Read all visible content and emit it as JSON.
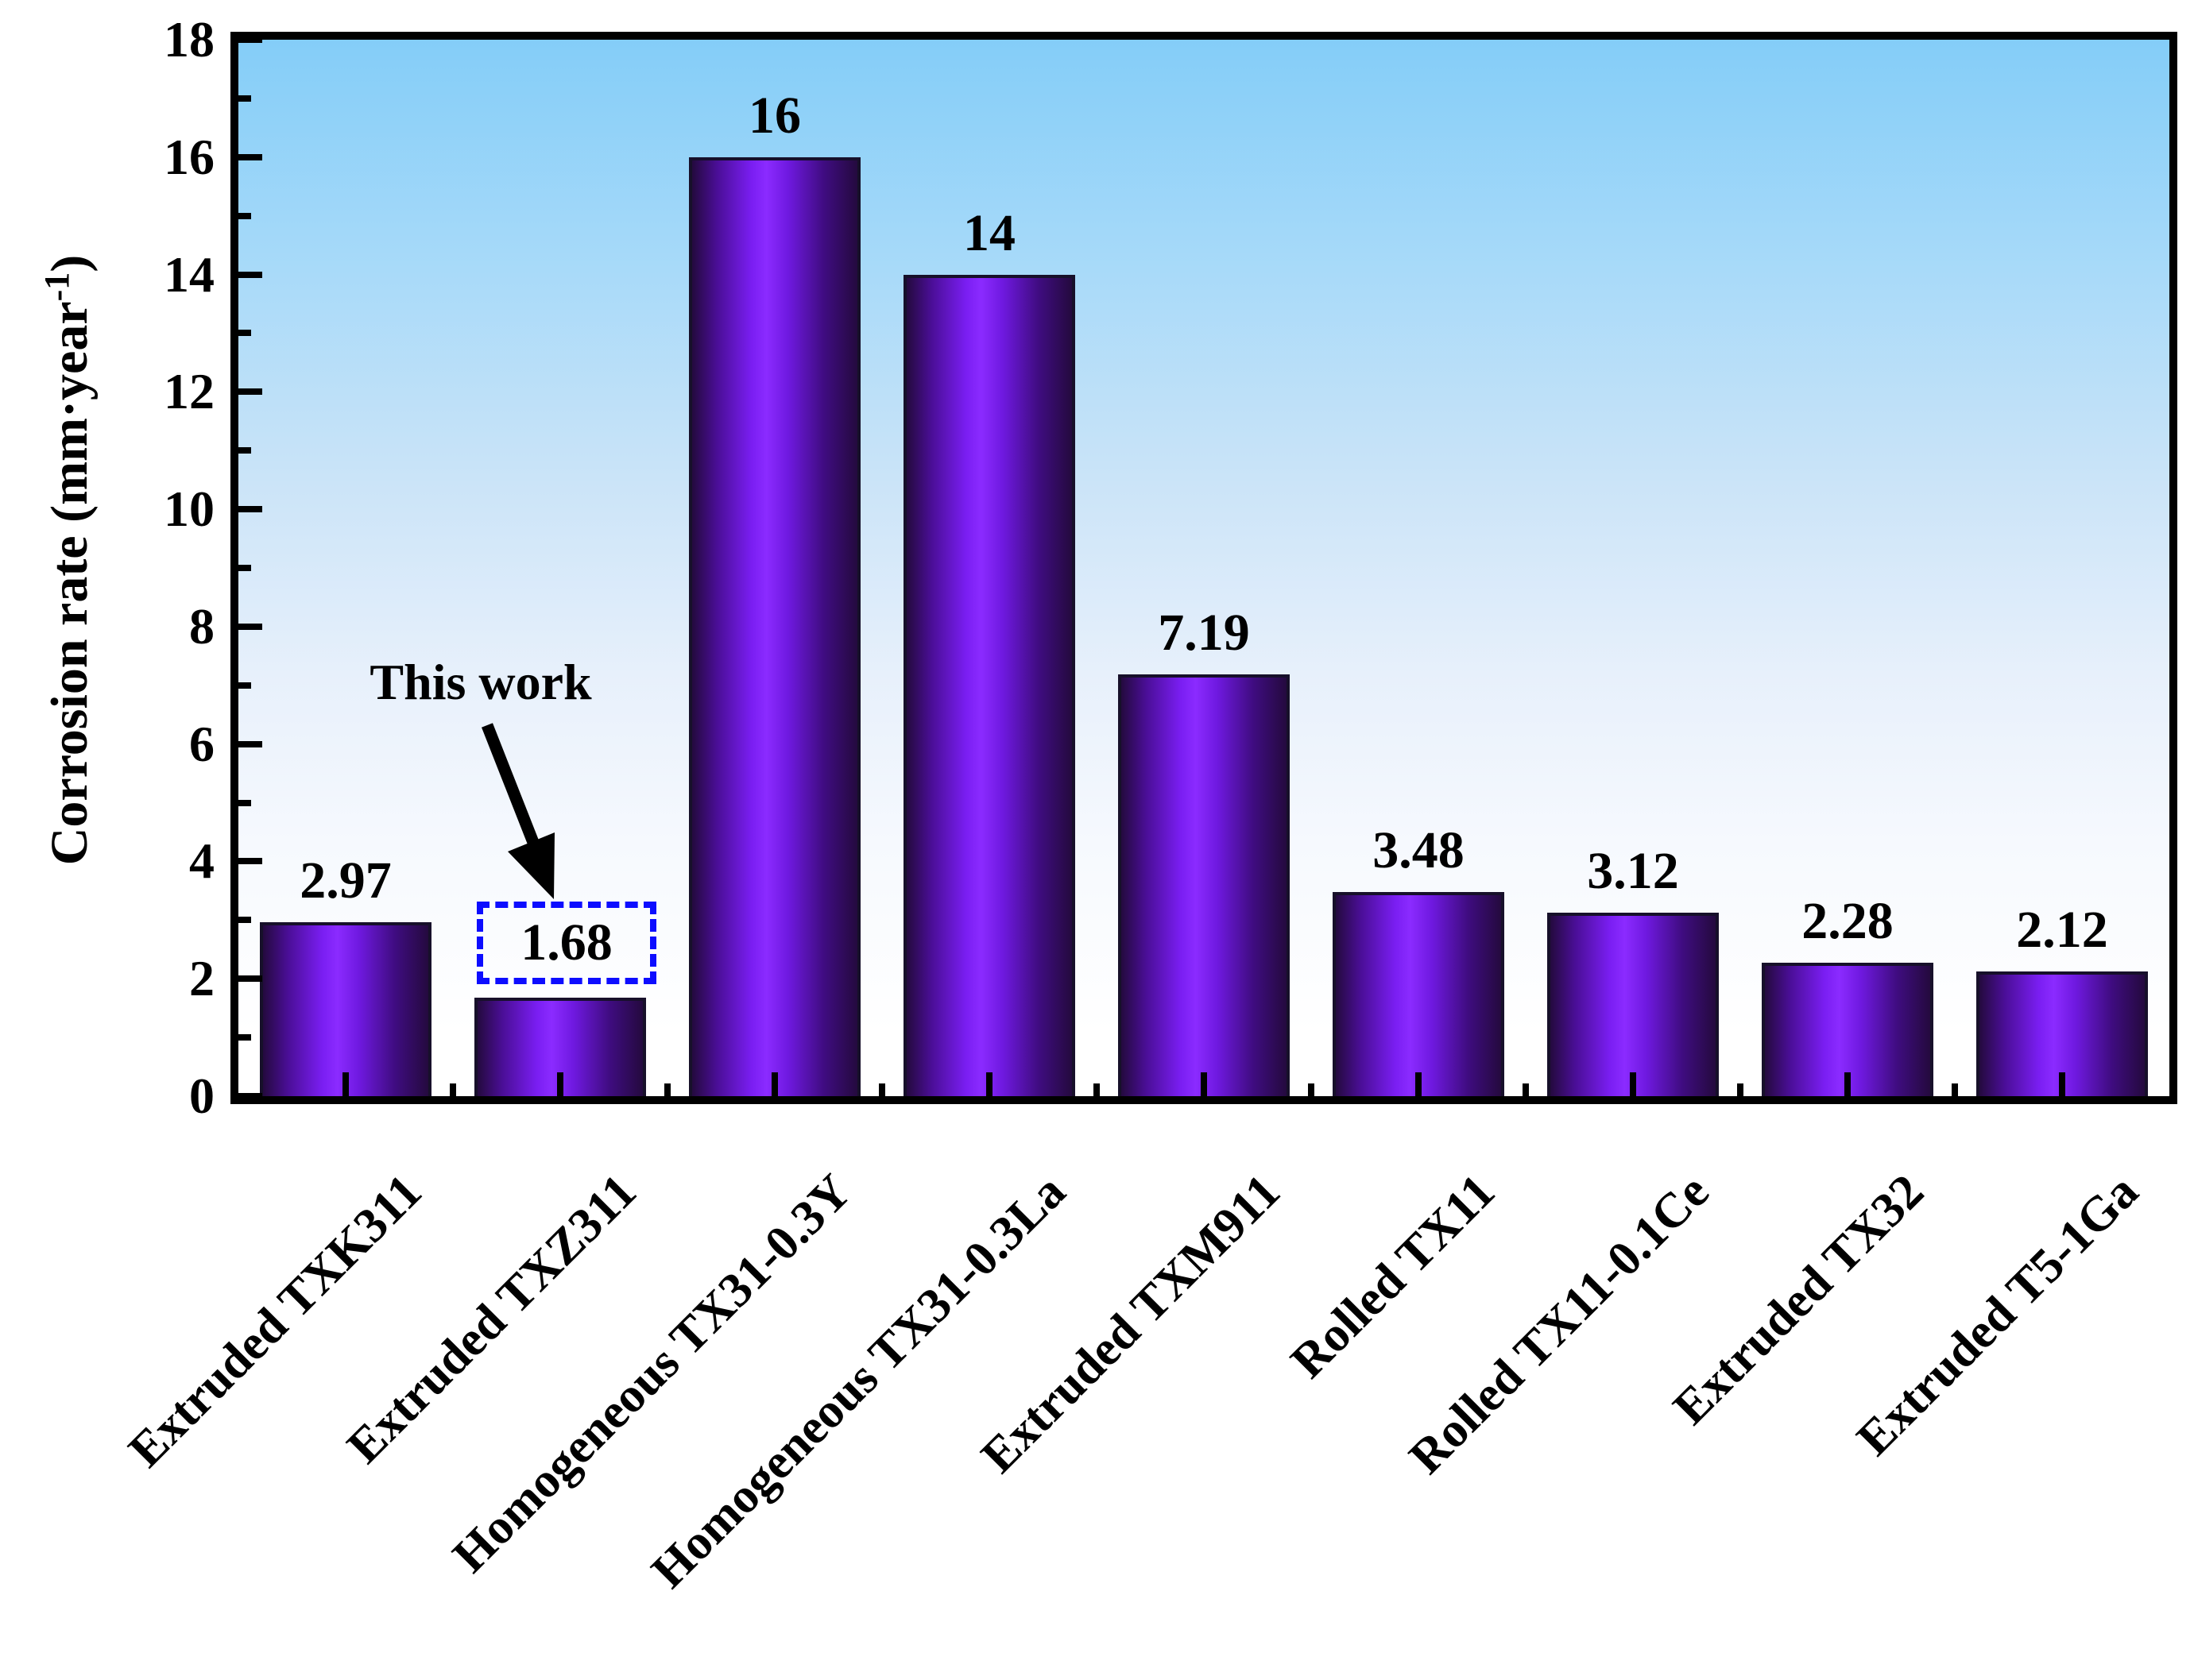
{
  "chart_data": {
    "type": "bar",
    "title": "",
    "categories": [
      "Extruded TXK311",
      "Extruded TXZ311",
      "Homogeneous TX31-0.3Y",
      "Homogeneous TX31-0.3La",
      "Extruded TXM911",
      "Rolled TX11",
      "Rolled TX11-0.1Ce",
      "Extruded TX32",
      "Extruded T5-1Ga"
    ],
    "values": [
      2.97,
      1.68,
      16,
      14,
      7.19,
      3.48,
      3.12,
      2.28,
      2.12
    ],
    "value_labels": [
      "2.97",
      "1.68",
      "16",
      "14",
      "7.19",
      "3.48",
      "3.12",
      "2.28",
      "2.12"
    ],
    "xlabel": "",
    "ylabel": "Corrosion rate (mm·year⁻¹)",
    "ylabel_parts": {
      "prefix": "Corrosion rate (mm·year",
      "superscript": "-1",
      "suffix": ")"
    },
    "ylim": [
      0,
      18
    ],
    "ytick_interval": 2,
    "ytick_labels": [
      "0",
      "2",
      "4",
      "6",
      "8",
      "10",
      "12",
      "14",
      "16",
      "18"
    ],
    "minor_ticks": true,
    "grid": false,
    "legend": null,
    "annotation": {
      "text": "This work",
      "target_index": 1,
      "target_category": "Extruded TXZ311",
      "highlight": "dashed-blue-box-around-value",
      "arrow": true
    },
    "colors": {
      "plot_bg_top": "#84cdf8",
      "plot_bg_bottom": "#ffffff",
      "bar_edge_dark": "#240a3e",
      "bar_deep": "#4a0e96",
      "bar_bright": "#8b2bff",
      "bar_mid_bright": "#7a1ef2",
      "bar_outline": "#17102a",
      "axis": "#000000",
      "text": "#000000",
      "highlight_box": "#0d0dff"
    }
  }
}
